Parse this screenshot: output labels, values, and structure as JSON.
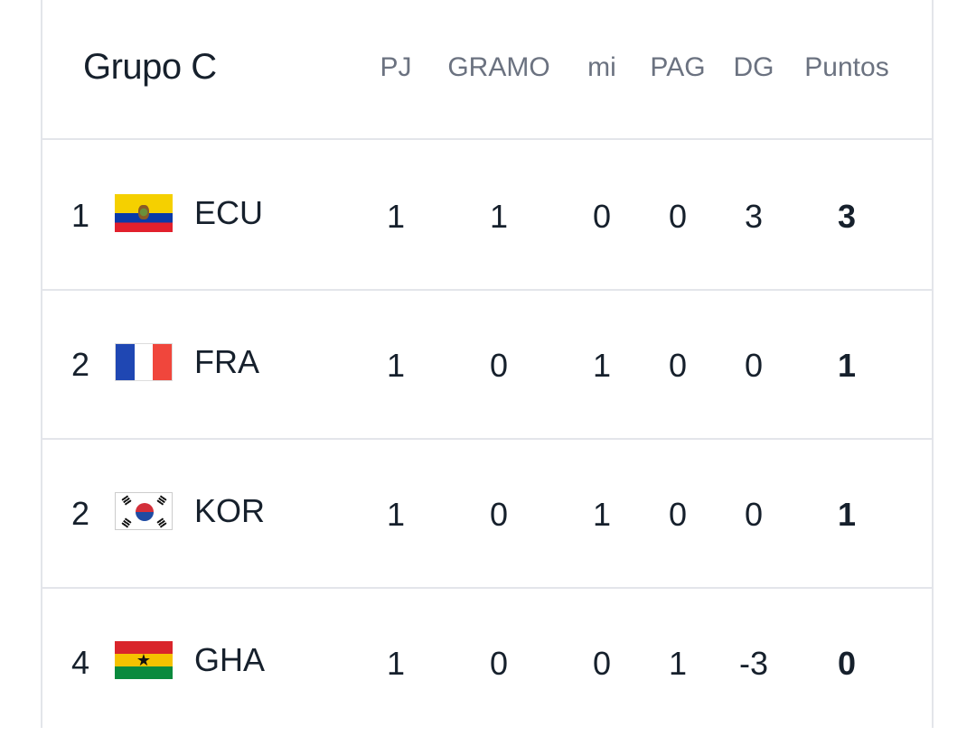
{
  "group": {
    "title": "Grupo C"
  },
  "columns": [
    "PJ",
    "GRAMO",
    "mi",
    "PAG",
    "DG",
    "Puntos"
  ],
  "rows": [
    {
      "pos": "1",
      "team": "ECU",
      "flag": "ecuador-flag-icon",
      "pj": "1",
      "g": "1",
      "e": "0",
      "p": "0",
      "dg": "3",
      "pts": "3"
    },
    {
      "pos": "2",
      "team": "FRA",
      "flag": "france-flag-icon",
      "pj": "1",
      "g": "0",
      "e": "1",
      "p": "0",
      "dg": "0",
      "pts": "1"
    },
    {
      "pos": "2",
      "team": "KOR",
      "flag": "south-korea-flag-icon",
      "pj": "1",
      "g": "0",
      "e": "1",
      "p": "0",
      "dg": "0",
      "pts": "1"
    },
    {
      "pos": "4",
      "team": "GHA",
      "flag": "ghana-flag-icon",
      "pj": "1",
      "g": "0",
      "e": "0",
      "p": "1",
      "dg": "-3",
      "pts": "0"
    }
  ],
  "colors": {
    "text": "#16202c",
    "muted": "#6b7280",
    "divider": "#e3e5ea"
  }
}
